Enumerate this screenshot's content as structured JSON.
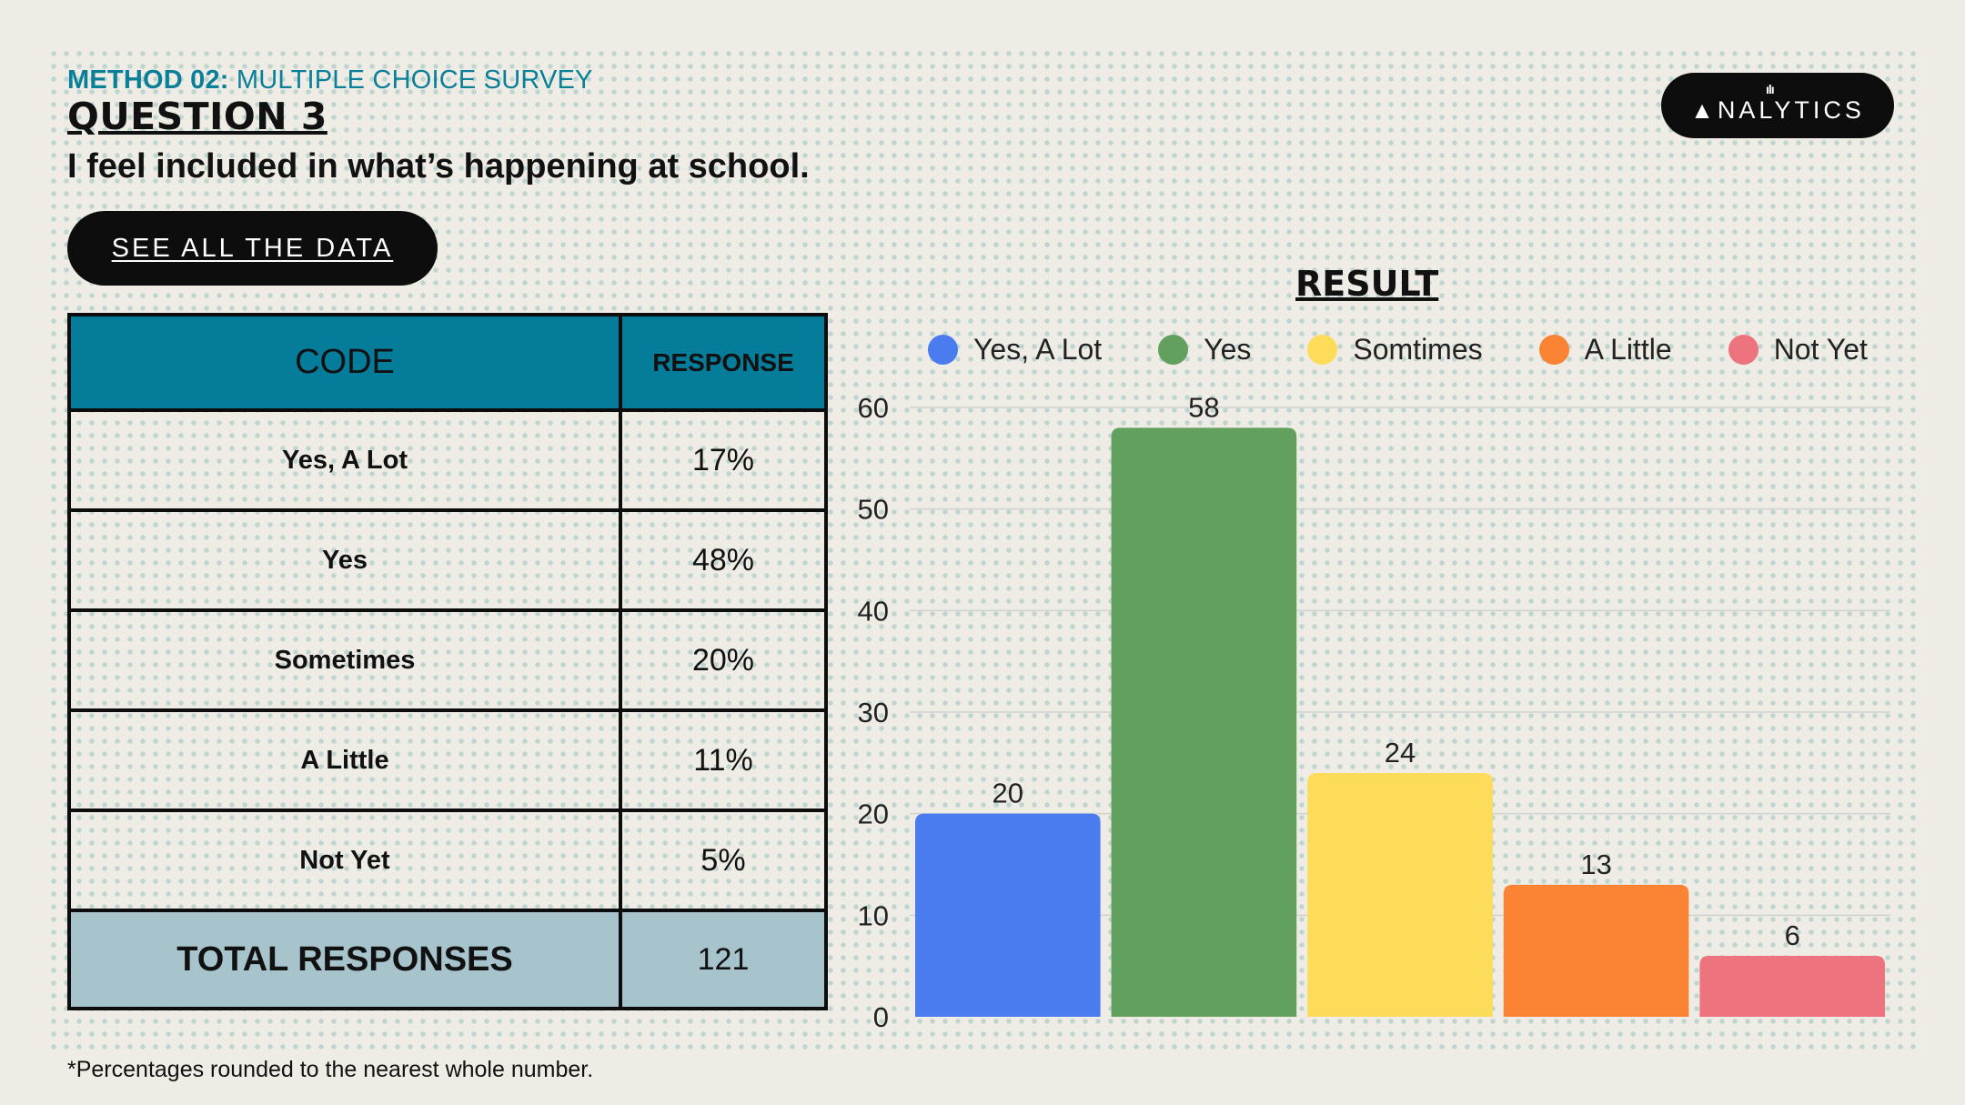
{
  "header": {
    "method_prefix": "METHOD 02:",
    "method_name": "MULTIPLE CHOICE SURVEY",
    "question": "QUESTION 3",
    "statement": "I feel included in what’s happening at school."
  },
  "button": {
    "label": "SEE ALL THE DATA"
  },
  "logo": {
    "mark": "ılı",
    "a": "▲",
    "text": "NALYTICS"
  },
  "table": {
    "headers": [
      "CODE",
      "RESPONSE"
    ],
    "rows": [
      {
        "code": "Yes, A Lot",
        "response": "17%"
      },
      {
        "code": "Yes",
        "response": "48%"
      },
      {
        "code": "Sometimes",
        "response": "20%"
      },
      {
        "code": "A Little",
        "response": "11%"
      },
      {
        "code": "Not Yet",
        "response": "5%"
      }
    ],
    "total_label": "TOTAL RESPONSES",
    "total_value": "121"
  },
  "footnote": "*Percentages rounded to the nearest whole number.",
  "chart_data": {
    "type": "bar",
    "title": "RESULT",
    "categories": [
      "Yes, A Lot",
      "Yes",
      "Somtimes",
      "A Little",
      "Not Yet"
    ],
    "values": [
      20,
      58,
      24,
      13,
      6
    ],
    "colors": [
      "#4a7cf0",
      "#62a060",
      "#fcdc58",
      "#fa8334",
      "#ed737e"
    ],
    "xlabel": "",
    "ylabel": "",
    "ylim": [
      0,
      60
    ],
    "yticks": [
      0,
      10,
      20,
      30,
      40,
      50,
      60
    ],
    "grid": true,
    "legend": "top"
  }
}
